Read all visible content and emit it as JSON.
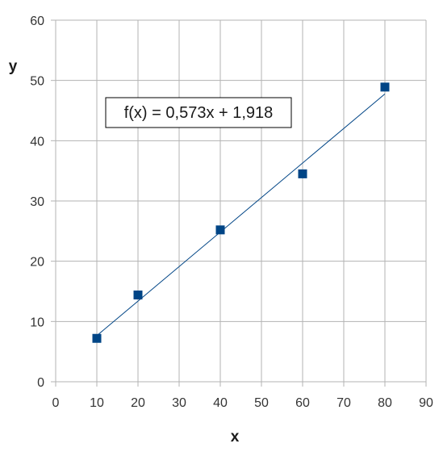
{
  "chart_data": {
    "type": "scatter",
    "title": "",
    "xlabel": "x",
    "ylabel": "y",
    "xlim": [
      0,
      90
    ],
    "ylim": [
      0,
      60
    ],
    "x_ticks": [
      0,
      10,
      20,
      30,
      40,
      50,
      60,
      70,
      80,
      90
    ],
    "y_ticks": [
      0,
      10,
      20,
      30,
      40,
      50,
      60
    ],
    "x_tick_labels": [
      "0",
      "10",
      "20",
      "30",
      "40",
      "50",
      "60",
      "70",
      "80",
      "90"
    ],
    "y_tick_labels": [
      "0",
      "10",
      "20",
      "30",
      "40",
      "50",
      "60"
    ],
    "grid": true,
    "series": [
      {
        "x": [
          10,
          20,
          40,
          60,
          80
        ],
        "y": [
          7.2,
          14.4,
          25.2,
          34.5,
          48.9
        ],
        "marker": "square",
        "color": "#004586"
      }
    ],
    "trendline": {
      "slope": 0.573,
      "intercept": 1.918,
      "x_range": [
        10,
        80
      ],
      "color": "#004586",
      "equation": "f(x) = 0,573x + 1,918"
    }
  },
  "colors": {
    "grid": "#b3b3b3",
    "axis": "#b3b3b3",
    "marker": "#004586",
    "line": "#004586"
  }
}
